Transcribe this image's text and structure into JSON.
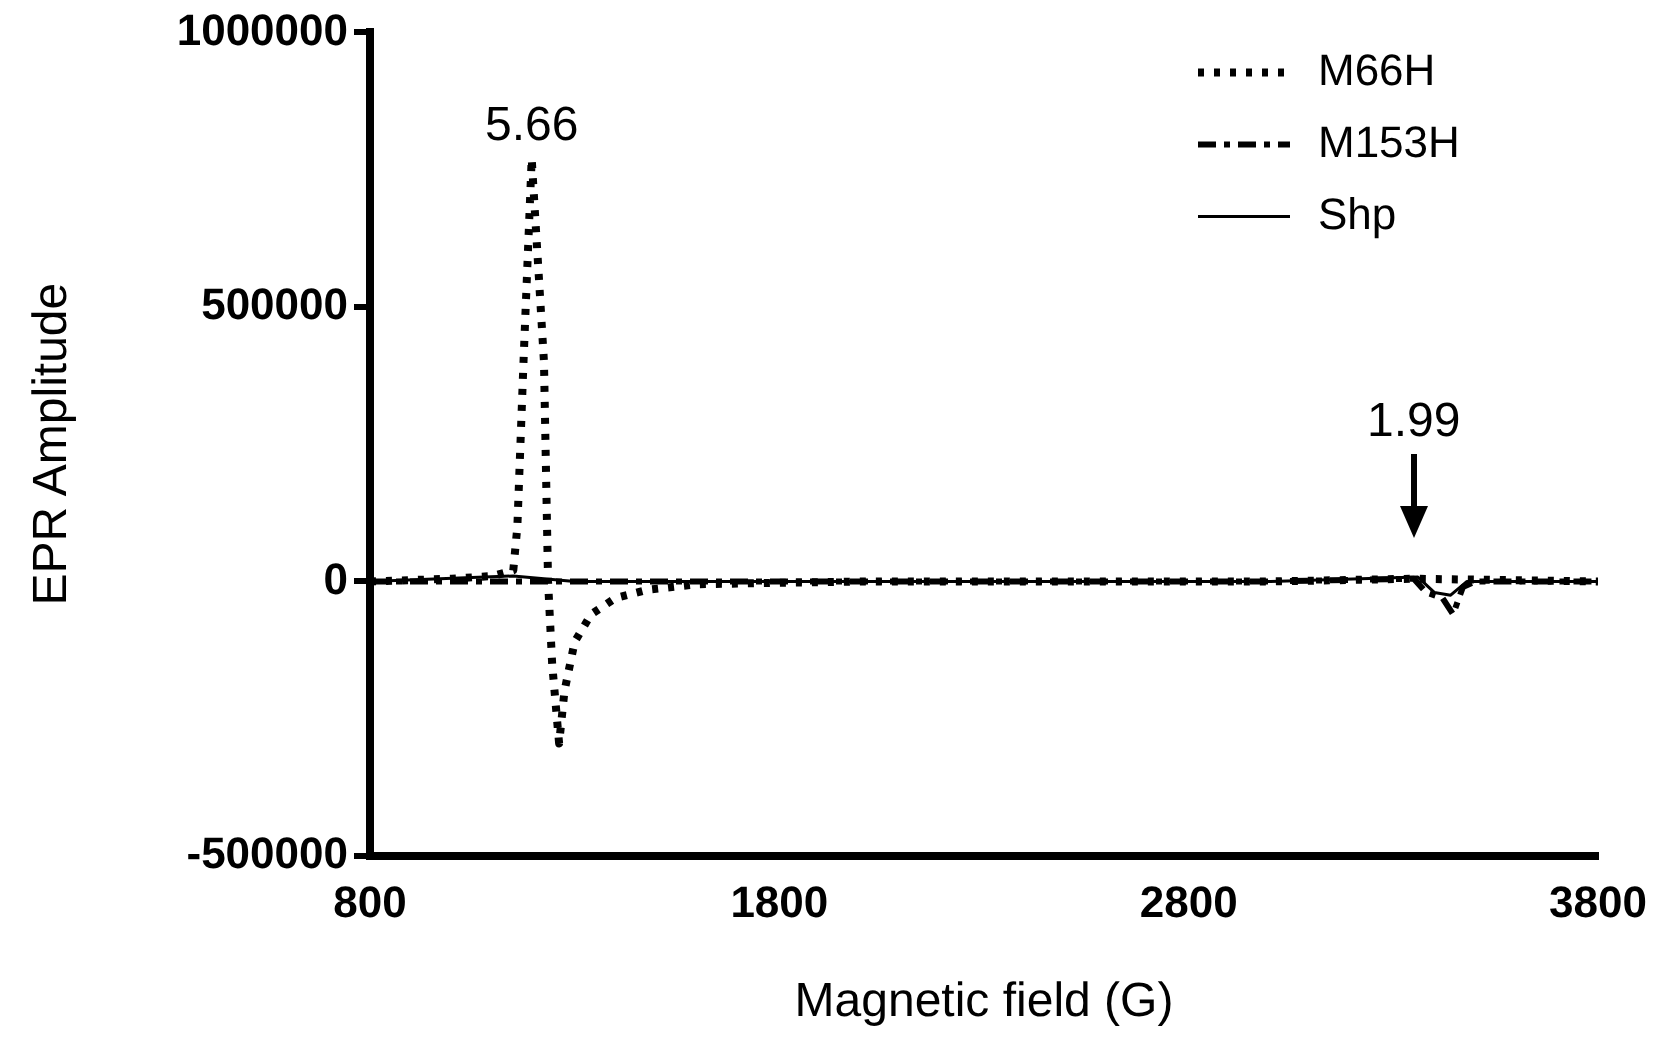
{
  "chart_data": {
    "type": "line",
    "xlabel": "Magnetic field (G)",
    "ylabel": "EPR Amplitude",
    "xlim": [
      800,
      3800
    ],
    "xticks": [
      800,
      1800,
      2800,
      3800
    ],
    "ylim": [
      -500000,
      1000000
    ],
    "yticks": [
      -500000,
      0,
      500000,
      1000000
    ],
    "grid": false,
    "legend": "top right",
    "marker": "none",
    "annotations": [
      {
        "text": "5.66",
        "x": 1195,
        "y": 770000
      },
      {
        "text": "1.99",
        "x": 3350,
        "y": 5000
      }
    ],
    "series": [
      {
        "name": "M66H",
        "color": "#000000",
        "line_style": "dotted",
        "x": [
          800,
          1000,
          1100,
          1150,
          1160,
          1175,
          1195,
          1225,
          1235,
          1245,
          1262,
          1275,
          1300,
          1340,
          1400,
          1480,
          1600,
          2000,
          3000,
          3350,
          3800
        ],
        "values": [
          0,
          5000,
          10000,
          20000,
          100000,
          400000,
          770000,
          400000,
          0,
          -150000,
          -295000,
          -200000,
          -110000,
          -60000,
          -30000,
          -15000,
          -5000,
          0,
          0,
          5000,
          0
        ]
      },
      {
        "name": "M153H",
        "color": "#000000",
        "line_style": "dashed",
        "x": [
          800,
          1200,
          2000,
          3000,
          3350,
          3380,
          3420,
          3446,
          3470,
          3500,
          3800
        ],
        "values": [
          0,
          0,
          0,
          0,
          5000,
          -20000,
          -30000,
          -60000,
          -10000,
          0,
          0
        ]
      },
      {
        "name": "Shp",
        "color": "#000000",
        "line_style": "solid",
        "x": [
          800,
          1150,
          1300,
          2000,
          3000,
          3360,
          3400,
          3440,
          3480,
          3800
        ],
        "values": [
          0,
          10000,
          0,
          0,
          0,
          8000,
          -20000,
          -25000,
          0,
          0
        ]
      }
    ]
  }
}
